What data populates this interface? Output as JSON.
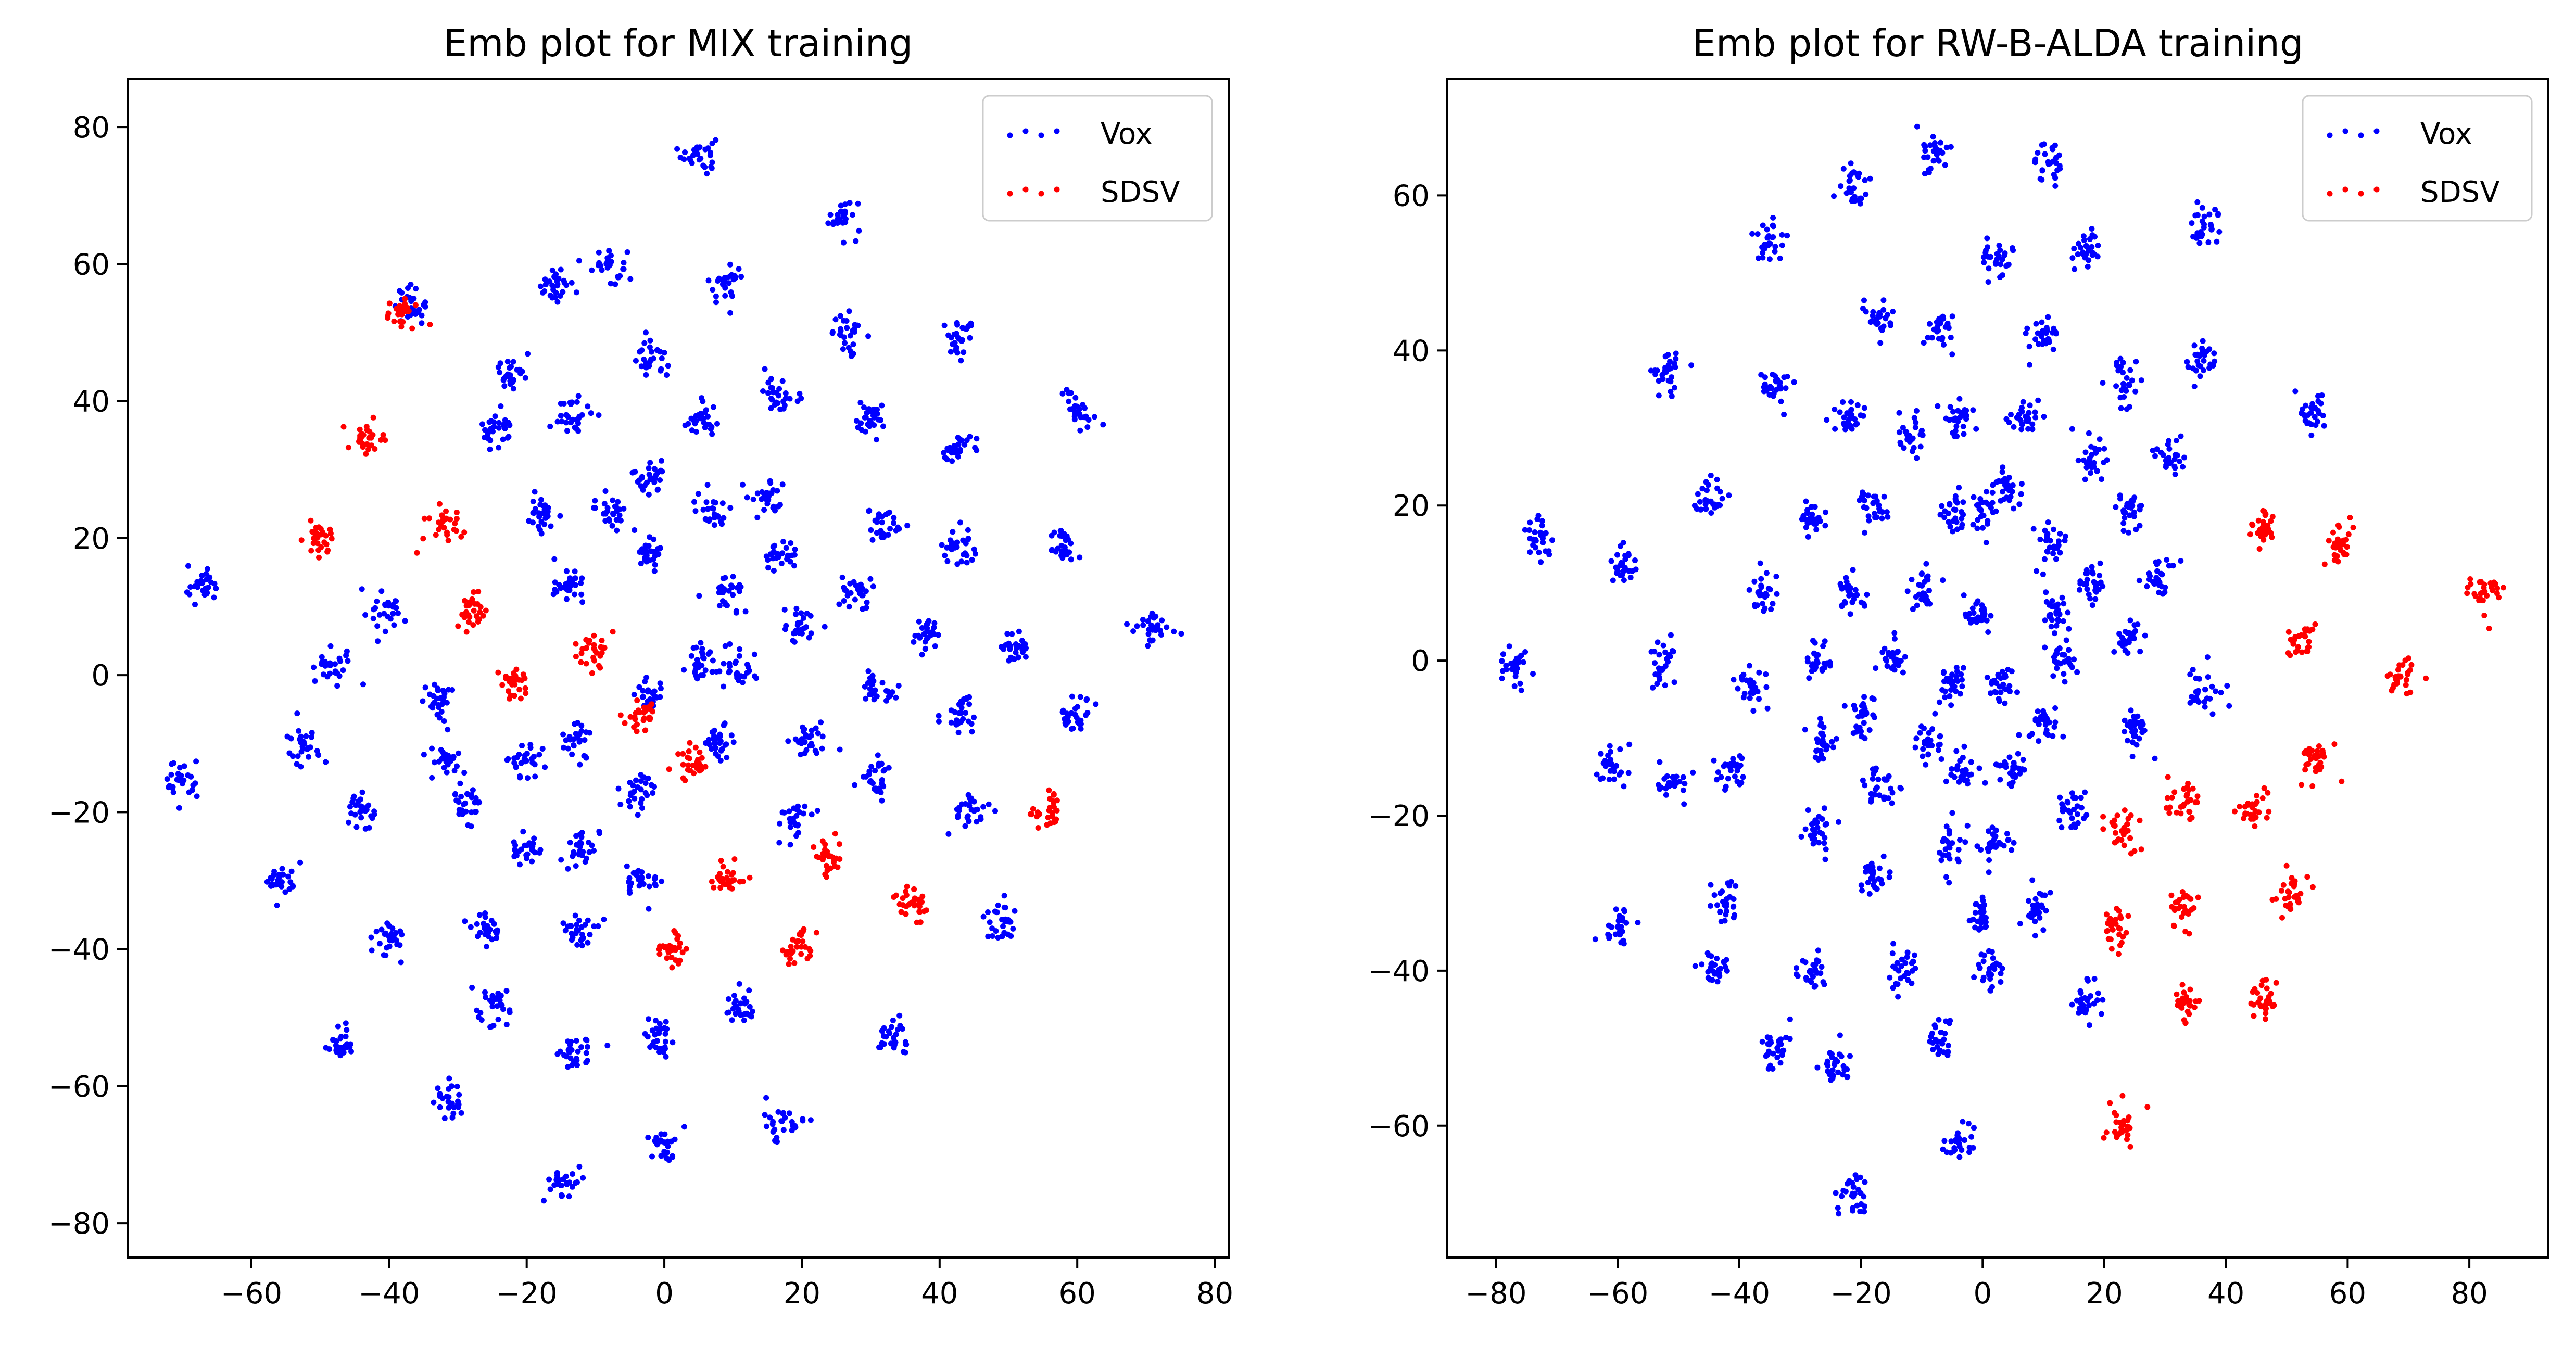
{
  "chart_data": [
    {
      "type": "scatter",
      "title": "Emb plot for MIX training",
      "xlabel": "",
      "ylabel": "",
      "xlim": [
        -78,
        82
      ],
      "ylim": [
        -85,
        87
      ],
      "xticks": [
        -60,
        -40,
        -20,
        0,
        20,
        40,
        60,
        80
      ],
      "yticks": [
        -80,
        -60,
        -40,
        -20,
        0,
        20,
        40,
        60,
        80
      ],
      "grid": false,
      "legend": {
        "placement": "top-right",
        "entries": [
          "Vox",
          "SDSV"
        ]
      },
      "series": [
        {
          "name": "Vox",
          "color": "#0000ff",
          "clusters": [
            [
              5,
              76
            ],
            [
              26,
              67
            ],
            [
              -8,
              60
            ],
            [
              -16,
              57
            ],
            [
              9,
              57
            ],
            [
              -37,
              54
            ],
            [
              27,
              50
            ],
            [
              43,
              49
            ],
            [
              -2,
              46
            ],
            [
              -22,
              44
            ],
            [
              17,
              41
            ],
            [
              60,
              39
            ],
            [
              -13,
              38
            ],
            [
              5,
              37
            ],
            [
              30,
              37
            ],
            [
              -24,
              36
            ],
            [
              42,
              33
            ],
            [
              -2,
              29
            ],
            [
              15,
              26
            ],
            [
              -18,
              24
            ],
            [
              -8,
              24
            ],
            [
              7,
              24
            ],
            [
              32,
              22
            ],
            [
              -2,
              18
            ],
            [
              58,
              19
            ],
            [
              43,
              18
            ],
            [
              -67,
              13
            ],
            [
              17,
              17
            ],
            [
              28,
              12
            ],
            [
              9,
              12
            ],
            [
              -40,
              9
            ],
            [
              -14,
              13
            ],
            [
              20,
              7
            ],
            [
              38,
              6
            ],
            [
              -48,
              1
            ],
            [
              5,
              2
            ],
            [
              11,
              1
            ],
            [
              51,
              4
            ],
            [
              -33,
              -3
            ],
            [
              31,
              -2
            ],
            [
              -2,
              -3
            ],
            [
              -20,
              -12
            ],
            [
              -13,
              -10
            ],
            [
              8,
              -10
            ],
            [
              21,
              -9
            ],
            [
              60,
              -6
            ],
            [
              43,
              -6
            ],
            [
              -52,
              -10
            ],
            [
              -32,
              -12
            ],
            [
              -4,
              -17
            ],
            [
              31,
              -15
            ],
            [
              -70,
              -15
            ],
            [
              -29,
              -19
            ],
            [
              -44,
              -20
            ],
            [
              45,
              -20
            ],
            [
              -12,
              -25
            ],
            [
              -20,
              -26
            ],
            [
              19,
              -21
            ],
            [
              -56,
              -30
            ],
            [
              -3,
              -30
            ],
            [
              -40,
              -38
            ],
            [
              -26,
              -37
            ],
            [
              -12,
              -37
            ],
            [
              49,
              -36
            ],
            [
              -25,
              -48
            ],
            [
              11,
              -49
            ],
            [
              -47,
              -54
            ],
            [
              -13,
              -55
            ],
            [
              33,
              -53
            ],
            [
              -1,
              -53
            ],
            [
              -31,
              -62
            ],
            [
              17,
              -65
            ],
            [
              71,
              7
            ],
            [
              0,
              -69
            ],
            [
              -15,
              -74
            ]
          ]
        },
        {
          "name": "SDSV",
          "color": "#ff0000",
          "clusters": [
            [
              -38,
              53
            ],
            [
              -43,
              35
            ],
            [
              -50,
              20
            ],
            [
              -32,
              22
            ],
            [
              -28,
              9
            ],
            [
              -22,
              -1
            ],
            [
              -10,
              3
            ],
            [
              -3,
              -6
            ],
            [
              4,
              -13
            ],
            [
              56,
              -20
            ],
            [
              24,
              -27
            ],
            [
              9,
              -30
            ],
            [
              36,
              -33
            ],
            [
              1,
              -40
            ],
            [
              19,
              -40
            ]
          ]
        }
      ]
    },
    {
      "type": "scatter",
      "title": "Emb plot for RW-B-ALDA training",
      "xlabel": "",
      "ylabel": "",
      "xlim": [
        -88,
        93
      ],
      "ylim": [
        -77,
        75
      ],
      "xticks": [
        -80,
        -60,
        -40,
        -20,
        0,
        20,
        40,
        60,
        80
      ],
      "yticks": [
        -60,
        -40,
        -20,
        0,
        20,
        40,
        60
      ],
      "grid": false,
      "legend": {
        "placement": "top-right",
        "entries": [
          "Vox",
          "SDSV"
        ]
      },
      "series": [
        {
          "name": "Vox",
          "color": "#0000ff",
          "clusters": [
            [
              -8,
              65
            ],
            [
              11,
              64
            ],
            [
              -21,
              61
            ],
            [
              37,
              56
            ],
            [
              -35,
              54
            ],
            [
              2,
              52
            ],
            [
              17,
              53
            ],
            [
              -17,
              44
            ],
            [
              -7,
              43
            ],
            [
              10,
              42
            ],
            [
              -52,
              37
            ],
            [
              23,
              36
            ],
            [
              -34,
              35
            ],
            [
              36,
              39
            ],
            [
              -22,
              31
            ],
            [
              -4,
              31
            ],
            [
              7,
              31
            ],
            [
              -12,
              29
            ],
            [
              54,
              32
            ],
            [
              -45,
              21
            ],
            [
              18,
              26
            ],
            [
              31,
              26
            ],
            [
              -28,
              18
            ],
            [
              -5,
              19
            ],
            [
              4,
              22
            ],
            [
              -18,
              20
            ],
            [
              11,
              15
            ],
            [
              24,
              19
            ],
            [
              -73,
              16
            ],
            [
              -59,
              12
            ],
            [
              0,
              19
            ],
            [
              -36,
              9
            ],
            [
              -22,
              9
            ],
            [
              -10,
              9
            ],
            [
              18,
              10
            ],
            [
              29,
              11
            ],
            [
              12,
              6
            ],
            [
              -1,
              6
            ],
            [
              -53,
              0
            ],
            [
              -27,
              0
            ],
            [
              -15,
              0
            ],
            [
              -77,
              -1
            ],
            [
              -5,
              -3
            ],
            [
              3,
              -3
            ],
            [
              -38,
              -3
            ],
            [
              24,
              3
            ],
            [
              13,
              0
            ],
            [
              36,
              -4
            ],
            [
              -20,
              -7
            ],
            [
              -9,
              -10
            ],
            [
              25,
              -9
            ],
            [
              -61,
              -13
            ],
            [
              -26,
              -11
            ],
            [
              10,
              -8
            ],
            [
              -3,
              -14
            ],
            [
              -41,
              -14
            ],
            [
              5,
              -14
            ],
            [
              -51,
              -16
            ],
            [
              -17,
              -16
            ],
            [
              -27,
              -22
            ],
            [
              2,
              -24
            ],
            [
              -5,
              -24
            ],
            [
              15,
              -19
            ],
            [
              -18,
              -28
            ],
            [
              -42,
              -31
            ],
            [
              0,
              -33
            ],
            [
              9,
              -32
            ],
            [
              -60,
              -34
            ],
            [
              -13,
              -40
            ],
            [
              1,
              -40
            ],
            [
              -44,
              -40
            ],
            [
              -28,
              -40
            ],
            [
              17,
              -44
            ],
            [
              -34,
              -50
            ],
            [
              -7,
              -49
            ],
            [
              -24,
              -52
            ],
            [
              -4,
              -62
            ],
            [
              -21,
              -69
            ]
          ]
        },
        {
          "name": "SDSV",
          "color": "#ff0000",
          "clusters": [
            [
              46,
              17
            ],
            [
              59,
              15
            ],
            [
              82,
              9
            ],
            [
              52,
              3
            ],
            [
              69,
              -2
            ],
            [
              55,
              -13
            ],
            [
              33,
              -18
            ],
            [
              44,
              -19
            ],
            [
              23,
              -22
            ],
            [
              33,
              -32
            ],
            [
              51,
              -30
            ],
            [
              22,
              -34
            ],
            [
              33,
              -44
            ],
            [
              46,
              -44
            ],
            [
              23,
              -60
            ]
          ]
        }
      ]
    }
  ]
}
